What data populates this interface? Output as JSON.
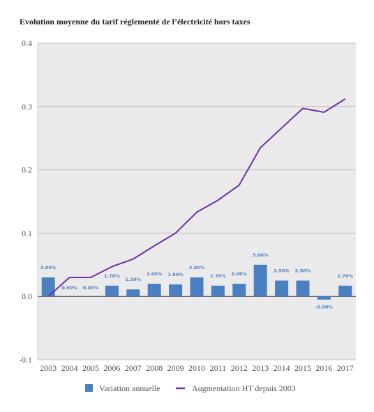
{
  "title": "Evolution moyenne du tarif réglementé de l’électricité hors taxes",
  "chart_data": {
    "type": "bar",
    "categories": [
      "2003",
      "2004",
      "2005",
      "2006",
      "2007",
      "2008",
      "2009",
      "2010",
      "2011",
      "2012",
      "2013",
      "2014",
      "2015",
      "2016",
      "2017"
    ],
    "series": [
      {
        "name": "Variation annuelle",
        "type": "bar",
        "color": "#4a7fc1",
        "values": [
          0.03,
          0.0,
          0.0,
          0.017,
          0.011,
          0.02,
          0.019,
          0.03,
          0.017,
          0.02,
          0.05,
          0.025,
          0.025,
          -0.005,
          0.017
        ],
        "labels": [
          "3.00%",
          "0.00%",
          "0.00%",
          "1.70%",
          "1.10%",
          "2.00%",
          "1.90%",
          "3.00%",
          "1.70%",
          "2.00%",
          "5.00%",
          "2.50%",
          "2.50%",
          "-0.50%",
          "1.70%"
        ]
      },
      {
        "name": "Augmentation HT depuis 2003",
        "type": "line",
        "color": "#7030a0",
        "values": [
          0.0,
          0.03,
          0.03,
          0.047,
          0.059,
          0.08,
          0.1,
          0.133,
          0.152,
          0.176,
          0.235,
          0.266,
          0.297,
          0.291,
          0.312
        ]
      }
    ],
    "ylim": [
      -0.1,
      0.4
    ],
    "yticks": [
      "-0.1",
      "0.0",
      "0.1",
      "0.2",
      "0.3",
      "0.4"
    ],
    "grid": true,
    "legend": "bottom-center"
  }
}
